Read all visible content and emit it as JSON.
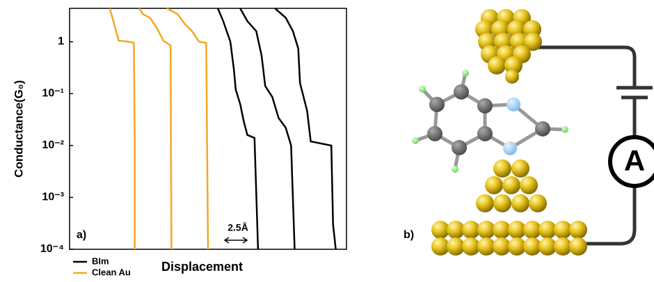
{
  "chart_data": {
    "type": "line",
    "ylabel": "Conductance(G₀)",
    "xlabel": "Displacement",
    "panel_label": "a)",
    "log_y": true,
    "ylim": [
      0.0001,
      4.4
    ],
    "xlim": [
      0,
      31
    ],
    "yticks": [
      {
        "value": 1,
        "label": "1"
      },
      {
        "value": 0.1,
        "label": "10⁻¹"
      },
      {
        "value": 0.01,
        "label": "10⁻²"
      },
      {
        "value": 0.001,
        "label": "10⁻³"
      },
      {
        "value": 0.0001,
        "label": "10⁻⁴"
      }
    ],
    "scale_bar": {
      "label": "2.5Å",
      "length": 2.5
    },
    "series": [
      {
        "name": "BIm",
        "color": "#000000",
        "traces": [
          {
            "x": [
              16.6,
              17.2,
              18.0,
              18.4,
              18.6,
              19.1,
              19.5,
              19.9,
              20.7,
              21.1
            ],
            "values": [
              4.4,
              2.5,
              1,
              0.29,
              0.12,
              0.063,
              0.029,
              0.016,
              0.014,
              0.0001
            ]
          },
          {
            "x": [
              19.1,
              19.9,
              20.9,
              21.5,
              21.9,
              22.7,
              23.4,
              24.2,
              24.8,
              25.2
            ],
            "values": [
              4.4,
              2.5,
              1.6,
              0.54,
              0.14,
              0.086,
              0.034,
              0.022,
              0.01,
              0.0001
            ]
          },
          {
            "x": [
              23.0,
              24.2,
              25.0,
              25.6,
              25.8,
              26.6,
              27.0,
              29.3,
              29.5,
              29.8
            ],
            "values": [
              4.4,
              2.9,
              1.6,
              0.74,
              0.16,
              0.046,
              0.012,
              0.01,
              0.0003,
              0.0001
            ]
          }
        ]
      },
      {
        "name": "Clean Au",
        "color": "#f5a623",
        "traces": [
          {
            "x": [
              4.5,
              4.9,
              5.2,
              5.5,
              6.6,
              7.2,
              7.3,
              7.3
            ],
            "values": [
              4.4,
              2.5,
              1.6,
              1.05,
              1,
              0.95,
              0.01,
              0.0001
            ]
          },
          {
            "x": [
              7.8,
              8.2,
              9.0,
              9.8,
              10.5,
              11.3,
              11.4
            ],
            "values": [
              4.4,
              3.4,
              2.9,
              1.8,
              1.05,
              0.85,
              0.0001
            ]
          },
          {
            "x": [
              10.9,
              12.1,
              12.9,
              13.7,
              14.5,
              15.3,
              15.5
            ],
            "values": [
              4.4,
              3.4,
              2.2,
              1.6,
              1,
              0.95,
              0.0001
            ]
          }
        ]
      }
    ]
  },
  "diagram": {
    "panel_label": "b)",
    "meter_label": "A"
  }
}
